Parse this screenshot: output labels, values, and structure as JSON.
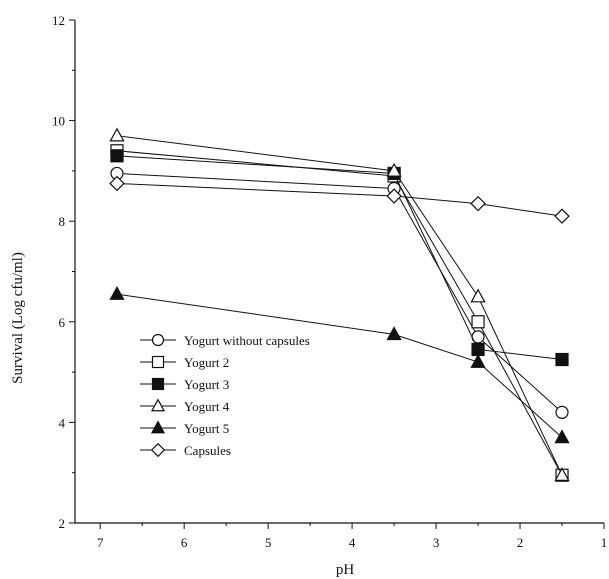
{
  "chart_data": {
    "type": "line",
    "xlabel": "pH",
    "ylabel": "Survival (Log cfu/ml)",
    "xlim": [
      7.3,
      1
    ],
    "ylim": [
      2,
      12
    ],
    "x_reversed": true,
    "x_ticks": [
      7,
      6,
      5,
      4,
      3,
      2,
      1
    ],
    "y_ticks": [
      2,
      4,
      6,
      8,
      10,
      12
    ],
    "grid": false,
    "legend_position": "bottom-left",
    "x": [
      6.8,
      3.5,
      2.5,
      1.5
    ],
    "series": [
      {
        "name": "Yogurt without capsules",
        "marker": "circle-open",
        "values": [
          8.95,
          8.65,
          5.7,
          4.2
        ]
      },
      {
        "name": "Yogurt 2",
        "marker": "square-open",
        "values": [
          9.4,
          8.9,
          6.0,
          2.95
        ]
      },
      {
        "name": "Yogurt 3",
        "marker": "square-filled",
        "values": [
          9.3,
          8.95,
          5.45,
          5.25
        ]
      },
      {
        "name": "Yogurt 4",
        "marker": "triangle-open",
        "values": [
          9.7,
          9.0,
          6.5,
          2.95
        ]
      },
      {
        "name": "Yogurt 5",
        "marker": "triangle-filled",
        "values": [
          6.55,
          5.75,
          5.2,
          3.7
        ]
      },
      {
        "name": "Capsules",
        "marker": "diamond-open",
        "values": [
          8.75,
          8.5,
          8.35,
          8.1
        ]
      }
    ]
  }
}
